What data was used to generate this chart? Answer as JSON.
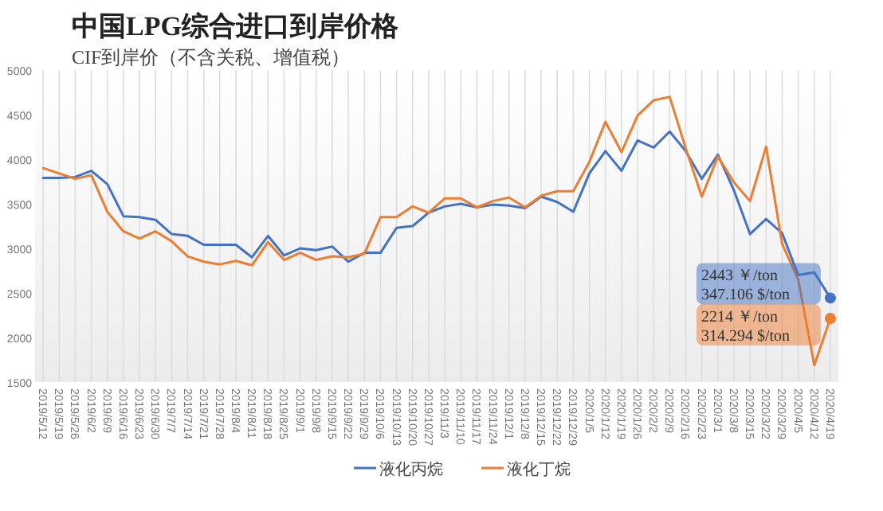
{
  "chart_data": {
    "type": "line",
    "title": "中国LPG综合进口到岸价格",
    "subtitle": "CIF到岸价（不含关税、增值税）",
    "categories": [
      "2019/5/12",
      "2019/5/19",
      "2019/5/26",
      "2019/6/2",
      "2019/6/9",
      "2019/6/16",
      "2019/6/23",
      "2019/6/30",
      "2019/7/7",
      "2019/7/14",
      "2019/7/21",
      "2019/7/28",
      "2019/8/4",
      "2019/8/11",
      "2019/8/18",
      "2019/8/25",
      "2019/9/1",
      "2019/9/8",
      "2019/9/15",
      "2019/9/22",
      "2019/9/29",
      "2019/10/6",
      "2019/10/13",
      "2019/10/20",
      "2019/10/27",
      "2019/11/3",
      "2019/11/10",
      "2019/11/17",
      "2019/11/24",
      "2019/12/1",
      "2019/12/8",
      "2019/12/15",
      "2019/12/22",
      "2019/12/29",
      "2020/1/5",
      "2020/1/12",
      "2020/1/19",
      "2020/1/26",
      "2020/2/2",
      "2020/2/9",
      "2020/2/16",
      "2020/2/23",
      "2020/3/1",
      "2020/3/8",
      "2020/3/15",
      "2020/3/22",
      "2020/3/29",
      "2020/4/5",
      "2020/4/12",
      "2020/4/19"
    ],
    "series": [
      {
        "name": "液化丙烷",
        "color": "#4472c4",
        "values": [
          3790,
          3790,
          3800,
          3870,
          3720,
          3360,
          3350,
          3320,
          3160,
          3140,
          3040,
          3040,
          3040,
          2900,
          3140,
          2920,
          3000,
          2980,
          3020,
          2850,
          2950,
          2950,
          3230,
          3250,
          3400,
          3470,
          3500,
          3460,
          3490,
          3480,
          3450,
          3580,
          3520,
          3410,
          3840,
          4090,
          3870,
          4210,
          4130,
          4310,
          4090,
          3780,
          4050,
          3650,
          3160,
          3330,
          3170,
          2700,
          2730,
          2443
        ]
      },
      {
        "name": "液化丁烷",
        "color": "#ed7d31",
        "values": [
          3900,
          3840,
          3780,
          3820,
          3410,
          3190,
          3110,
          3190,
          3080,
          2910,
          2850,
          2820,
          2860,
          2810,
          3070,
          2870,
          2950,
          2870,
          2910,
          2900,
          2940,
          3350,
          3350,
          3470,
          3400,
          3560,
          3560,
          3460,
          3530,
          3570,
          3460,
          3590,
          3640,
          3640,
          3970,
          4420,
          4080,
          4490,
          4660,
          4700,
          4120,
          3580,
          4030,
          3740,
          3530,
          4140,
          3050,
          2650,
          1690,
          2214
        ]
      }
    ],
    "ylim": [
      1500,
      5000
    ],
    "yticks": [
      1500,
      2000,
      2500,
      3000,
      3500,
      4000,
      4500,
      5000
    ],
    "grid": "x",
    "legend": "bottom",
    "marker": "none",
    "line_style": "solid",
    "annotations": [
      {
        "text": "2443 ￥/ton\n347.106 $/ton",
        "x": "2020/4/19",
        "y": 2443
      },
      {
        "text": "2214 ￥/ton\n314.294 $/ton",
        "x": "2020/4/19",
        "y": 2214
      }
    ]
  }
}
